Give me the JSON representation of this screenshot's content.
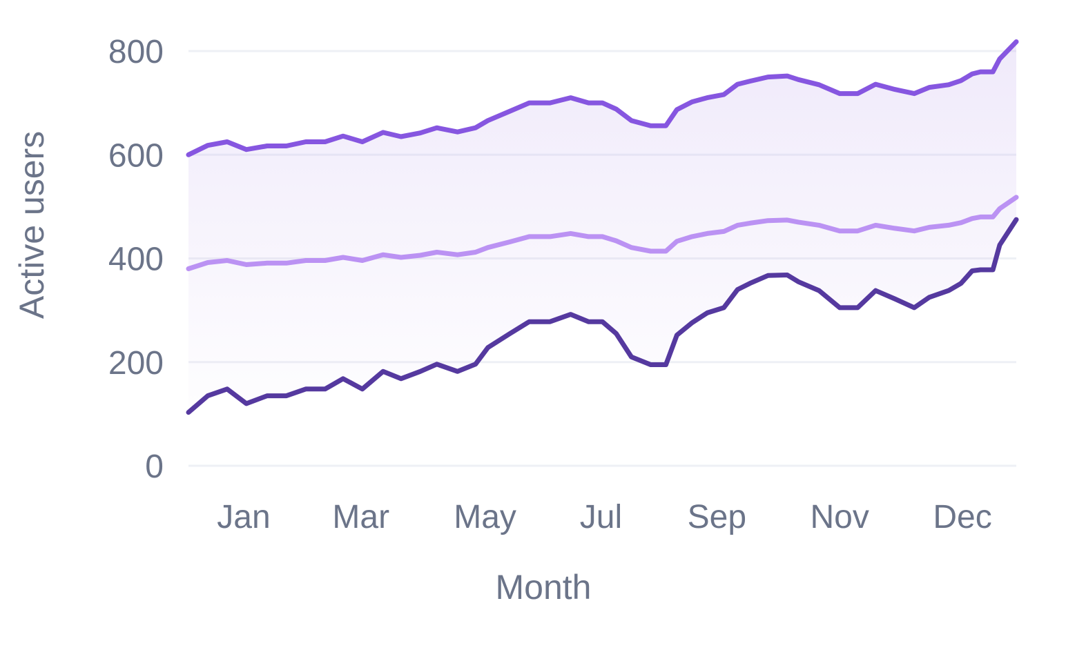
{
  "chart_data": {
    "type": "line",
    "title": "",
    "xlabel": "Month",
    "ylabel": "Active users",
    "ylim": [
      0,
      800
    ],
    "yticks": [
      0,
      200,
      400,
      600,
      800
    ],
    "yticks_text": [
      "0",
      "200",
      "400",
      "600",
      "800"
    ],
    "xlim": [
      0,
      1
    ],
    "xticks": [
      {
        "pos": 0.0667,
        "label": "Jan"
      },
      {
        "pos": 0.2083,
        "label": "Mar"
      },
      {
        "pos": 0.3583,
        "label": "May"
      },
      {
        "pos": 0.4983,
        "label": "Jul"
      },
      {
        "pos": 0.6383,
        "label": "Sep"
      },
      {
        "pos": 0.7866,
        "label": "Nov"
      },
      {
        "pos": 0.935,
        "label": "Dec"
      }
    ],
    "grid": true,
    "colors": {
      "upper": "#8656e0",
      "middle": "#bb92f3",
      "lower": "#55399f",
      "band": "#c8b3ee",
      "grid": "#eef0f5",
      "text": "#6b7489"
    },
    "series": [
      {
        "key": "upper",
        "x": [
          0,
          0.0233,
          0.0467,
          0.07,
          0.095,
          0.1183,
          0.1417,
          0.165,
          0.1867,
          0.21,
          0.235,
          0.2567,
          0.28,
          0.3,
          0.325,
          0.3467,
          0.3617,
          0.3883,
          0.4117,
          0.4367,
          0.4617,
          0.4833,
          0.5,
          0.5167,
          0.535,
          0.5583,
          0.5767,
          0.59,
          0.6083,
          0.6267,
          0.6467,
          0.6633,
          0.6783,
          0.7,
          0.7233,
          0.7367,
          0.7617,
          0.7867,
          0.8083,
          0.83,
          0.8533,
          0.8767,
          0.895,
          0.9183,
          0.9333,
          0.9467,
          0.9567,
          0.9717,
          0.98,
          1.0
        ],
        "y": [
          600,
          618,
          625,
          610,
          617,
          617,
          625,
          625,
          636,
          625,
          643,
          635,
          642,
          652,
          644,
          652,
          666,
          684,
          700,
          700,
          710,
          700,
          700,
          688,
          666,
          656,
          656,
          687,
          702,
          710,
          716,
          736,
          742,
          750,
          752,
          745,
          735,
          718,
          718,
          736,
          726,
          718,
          730,
          735,
          743,
          756,
          760,
          760,
          785,
          818
        ]
      },
      {
        "key": "middle",
        "x": [
          0,
          0.0233,
          0.0467,
          0.07,
          0.095,
          0.1183,
          0.1417,
          0.165,
          0.1867,
          0.21,
          0.235,
          0.2567,
          0.28,
          0.3,
          0.325,
          0.3467,
          0.3617,
          0.3883,
          0.4117,
          0.4367,
          0.4617,
          0.4833,
          0.5,
          0.5167,
          0.535,
          0.5583,
          0.5767,
          0.59,
          0.6083,
          0.6267,
          0.6467,
          0.6633,
          0.6783,
          0.7,
          0.7233,
          0.7367,
          0.7617,
          0.7867,
          0.8083,
          0.83,
          0.8533,
          0.8767,
          0.895,
          0.9183,
          0.9333,
          0.9467,
          0.9567,
          0.9717,
          0.98,
          1.0
        ],
        "y": [
          380,
          392,
          396,
          388,
          391,
          391,
          396,
          396,
          402,
          396,
          407,
          402,
          406,
          412,
          407,
          412,
          421,
          432,
          442,
          442,
          448,
          442,
          442,
          434,
          421,
          414,
          414,
          433,
          442,
          448,
          452,
          464,
          468,
          473,
          474,
          470,
          464,
          453,
          453,
          464,
          458,
          453,
          460,
          464,
          469,
          477,
          480,
          480,
          496,
          518
        ]
      },
      {
        "key": "lower",
        "x": [
          0,
          0.0233,
          0.0467,
          0.07,
          0.095,
          0.1183,
          0.1417,
          0.165,
          0.1867,
          0.21,
          0.235,
          0.2567,
          0.28,
          0.3,
          0.325,
          0.3467,
          0.3617,
          0.3883,
          0.4117,
          0.4367,
          0.4617,
          0.4833,
          0.5,
          0.5167,
          0.535,
          0.5583,
          0.5767,
          0.59,
          0.6083,
          0.6267,
          0.6467,
          0.6633,
          0.6783,
          0.7,
          0.7233,
          0.7367,
          0.7617,
          0.7867,
          0.8083,
          0.83,
          0.8533,
          0.8767,
          0.895,
          0.9183,
          0.9333,
          0.9467,
          0.9567,
          0.9717,
          0.98,
          1.0
        ],
        "y": [
          103,
          135,
          148,
          120,
          135,
          135,
          148,
          148,
          168,
          148,
          182,
          168,
          182,
          196,
          182,
          196,
          228,
          255,
          278,
          278,
          292,
          278,
          278,
          255,
          210,
          195,
          195,
          252,
          276,
          295,
          305,
          340,
          352,
          367,
          368,
          355,
          338,
          305,
          305,
          338,
          322,
          305,
          325,
          338,
          352,
          376,
          378,
          378,
          426,
          475
        ]
      }
    ]
  }
}
